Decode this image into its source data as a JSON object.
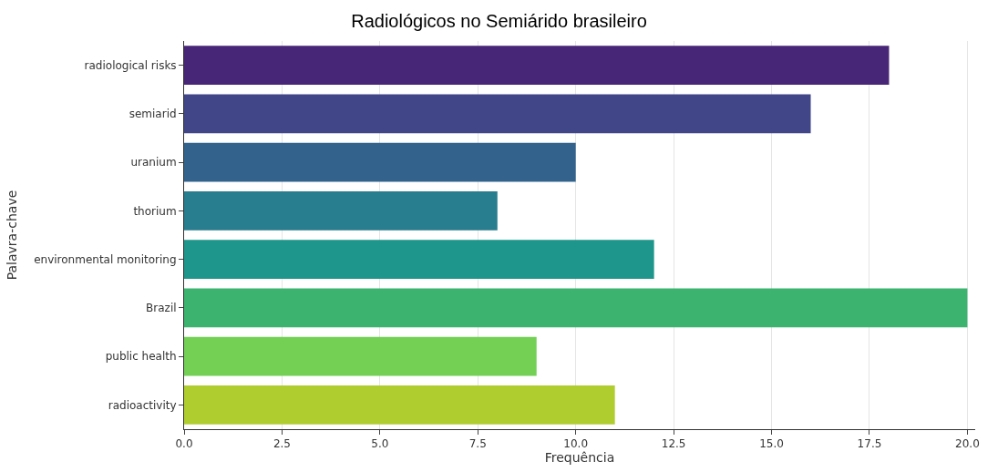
{
  "chart_data": {
    "type": "bar",
    "orientation": "horizontal",
    "title": "Radiológicos no Semiárido brasileiro",
    "xlabel": "Frequência",
    "ylabel": "Palavra-chave",
    "categories": [
      "radiological risks",
      "semiarid",
      "uranium",
      "thorium",
      "environmental monitoring",
      "Brazil",
      "public health",
      "radioactivity"
    ],
    "values": [
      18,
      16,
      10,
      8,
      12,
      20,
      9,
      11
    ],
    "colors": [
      "#482677",
      "#404688",
      "#33638d",
      "#287d8e",
      "#1f968b",
      "#3cb470",
      "#73d055",
      "#b0cd2f"
    ],
    "xlim": [
      0,
      20.2
    ],
    "xticks": [
      {
        "value": 0,
        "label": "0.0"
      },
      {
        "value": 2.5,
        "label": "2.5"
      },
      {
        "value": 5,
        "label": "5.0"
      },
      {
        "value": 7.5,
        "label": "7.5"
      },
      {
        "value": 10,
        "label": "10.0"
      },
      {
        "value": 12.5,
        "label": "12.5"
      },
      {
        "value": 15,
        "label": "15.0"
      },
      {
        "value": 17.5,
        "label": "17.5"
      },
      {
        "value": 20,
        "label": "20.0"
      }
    ],
    "grid": "x"
  }
}
